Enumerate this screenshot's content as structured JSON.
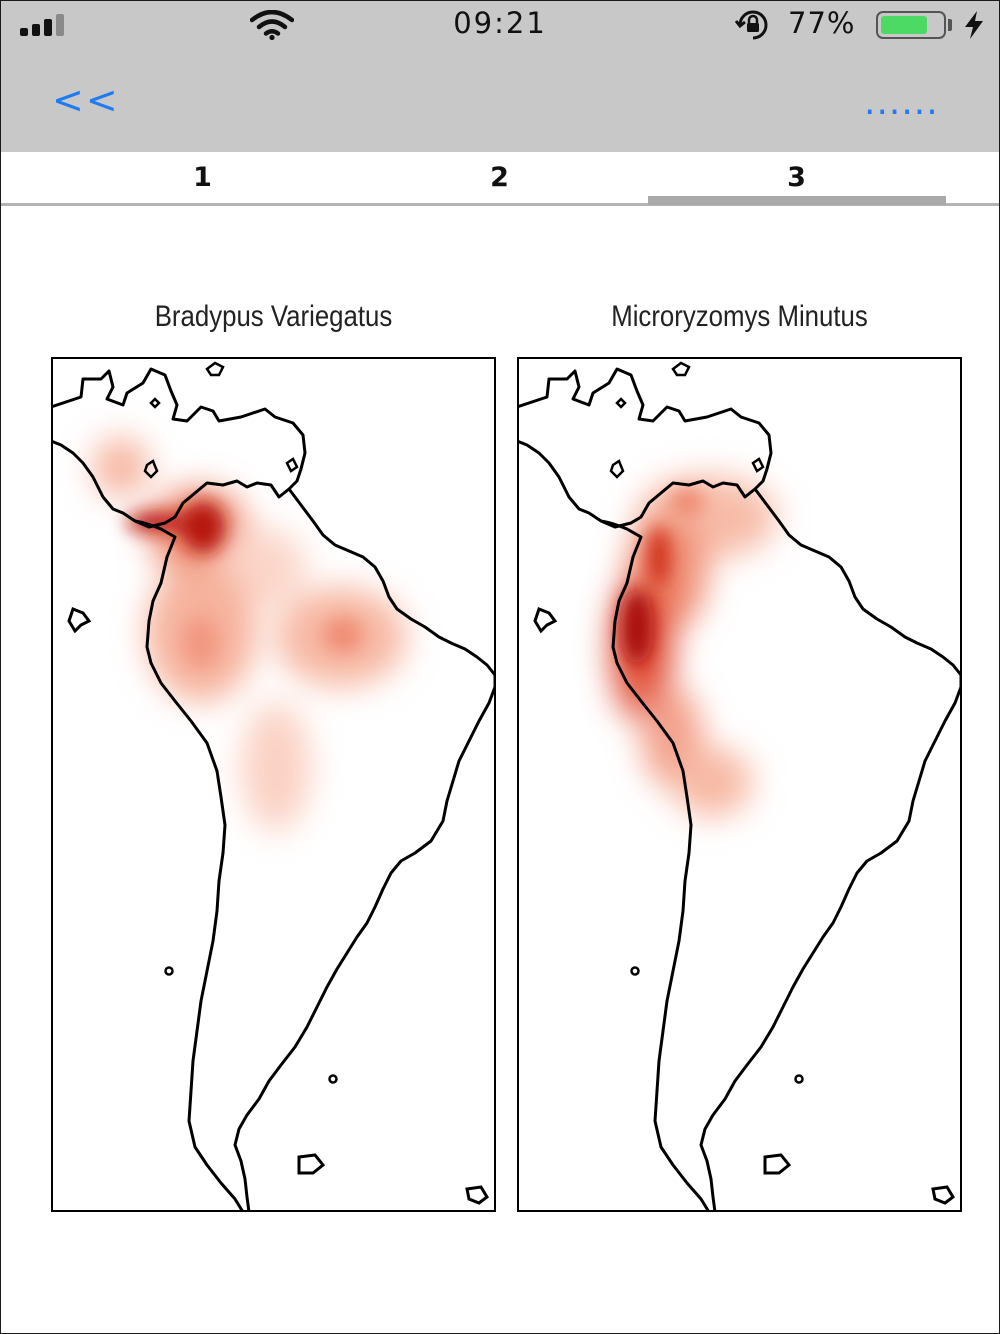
{
  "status_bar": {
    "time": "09:21",
    "battery_percent": "77%",
    "battery_level": 0.77,
    "signal_bars": 3,
    "icons": [
      "signal-icon",
      "wifi-icon",
      "rotation-lock-icon",
      "battery-icon",
      "charging-icon"
    ]
  },
  "nav": {
    "back_label": "<<",
    "more_label": "......"
  },
  "tabs": [
    {
      "label": "1"
    },
    {
      "label": "2"
    },
    {
      "label": "3"
    }
  ],
  "selected_tab": "3",
  "colors": {
    "accent": "#1f7bf2",
    "bar_bg": "#c8c8c8",
    "heat_high": "#b00d0d",
    "heat_low": "#fbe1d7",
    "battery": "#4cd964"
  },
  "chart_data": [
    {
      "type": "heatmap",
      "title": "Bradypus Variegatus",
      "xlabel": "",
      "ylabel": "",
      "region": "Central and South America",
      "density_hotspots": [
        "Panama / NW Colombia (highest)",
        "Colombian Andes",
        "Ecuador",
        "Central Amazon",
        "Central Brazil / Bolivia"
      ]
    },
    {
      "type": "heatmap",
      "title": "Microryzomys Minutus",
      "xlabel": "",
      "ylabel": "",
      "region": "Central and South America",
      "density_hotspots": [
        "Ecuador / Andes (highest)",
        "Colombian Andes",
        "Venezuela",
        "Peruvian Andes",
        "Bolivian Andes"
      ]
    }
  ]
}
